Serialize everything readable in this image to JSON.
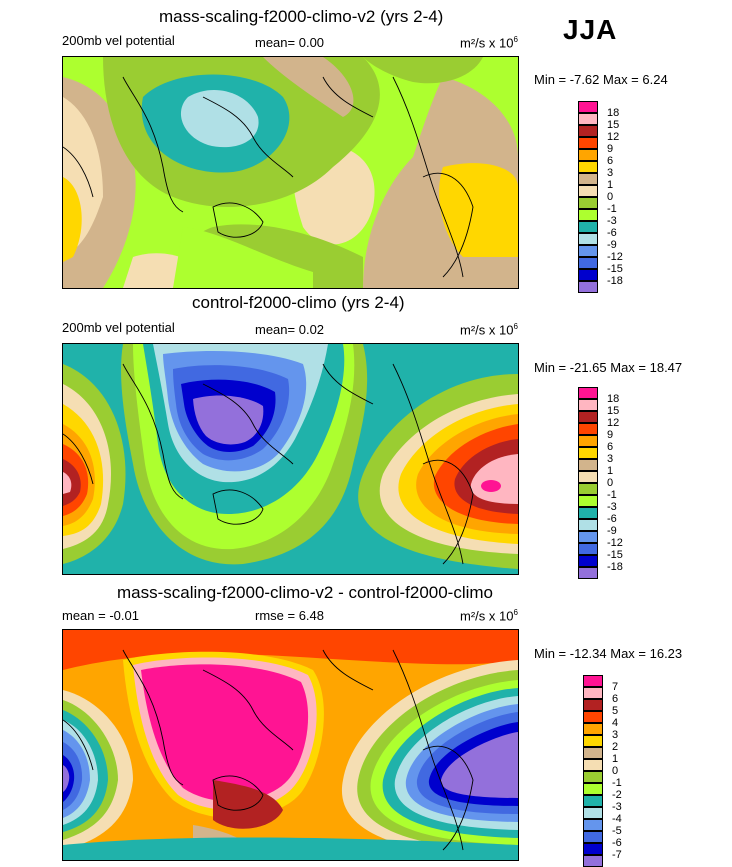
{
  "season": "JJA",
  "colors": {
    "pos9": "#ff1493",
    "pos8": "#ffb6c1",
    "pos7": "#b22222",
    "pos6": "#ff4500",
    "pos5": "#ffa500",
    "pos4": "#ffd700",
    "pos3": "#d2b48c",
    "pos2": "#f5deb3",
    "neg1": "#9acd32",
    "neg2": "#adff2f",
    "neg3": "#20b2aa",
    "neg4": "#b0e0e6",
    "neg5": "#6495ed",
    "neg6": "#4169e1",
    "neg7": "#0000cd",
    "neg8": "#9370db",
    "coast": "#000000"
  },
  "panels": [
    {
      "title": "mass-scaling-f2000-climo-v2 (yrs 2-4)",
      "left_label": "200mb vel potential",
      "mid_label": "mean=  0.00",
      "units_base": "m²/s x 10",
      "units_exp": "6",
      "minmax": "Min =  -7.62 Max =   6.24",
      "legend_labels": [
        "18",
        "15",
        "12",
        "9",
        "6",
        "3",
        "1",
        "0",
        "-1",
        "-3",
        "-6",
        "-9",
        "-12",
        "-15",
        "-18"
      ]
    },
    {
      "title": "control-f2000-climo (yrs 2-4)",
      "left_label": "200mb vel potential",
      "mid_label": "mean=  0.02",
      "units_base": "m²/s x 10",
      "units_exp": "6",
      "minmax": "Min = -21.65 Max =  18.47",
      "legend_labels": [
        "18",
        "15",
        "12",
        "9",
        "6",
        "3",
        "1",
        "0",
        "-1",
        "-3",
        "-6",
        "-9",
        "-12",
        "-15",
        "-18"
      ]
    },
    {
      "title": "mass-scaling-f2000-climo-v2 - control-f2000-climo",
      "left_label": "mean =  -0.01",
      "mid_label": "rmse =   6.48",
      "units_base": "m²/s x 10",
      "units_exp": "6",
      "minmax": "Min = -12.34 Max =  16.23",
      "legend_labels": [
        "7",
        "6",
        "5",
        "4",
        "3",
        "2",
        "1",
        "0",
        "-1",
        "-2",
        "-3",
        "-4",
        "-5",
        "-6",
        "-7"
      ]
    }
  ]
}
